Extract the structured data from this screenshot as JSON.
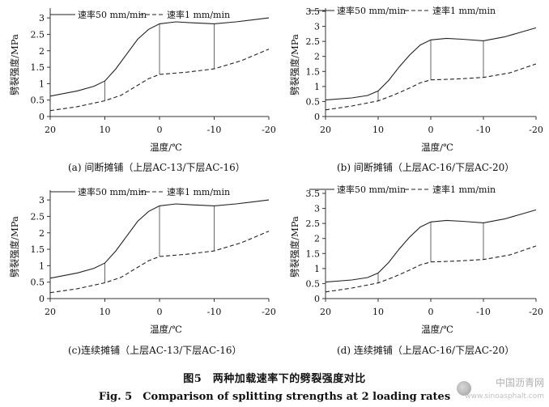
{
  "figure": {
    "caption_cn": "图5　两种加载速率下的劈裂强度对比",
    "caption_en": "Fig. 5　Comparison of splitting strengths at 2 loading rates"
  },
  "watermark": {
    "text": "中国沥青网",
    "url": "www.sinoasphalt.com"
  },
  "chart_data": [
    {
      "type": "line",
      "caption": "(a) 间断摊铺（上层AC-13/下层AC-16）",
      "xlabel": "温度/℃",
      "ylabel": "劈裂强度/MPa",
      "x_ticks": [
        20,
        10,
        0,
        -10,
        -20
      ],
      "y_ticks": [
        0,
        0.5,
        1,
        1.5,
        2,
        2.5,
        3
      ],
      "xlim": [
        20,
        -20
      ],
      "ylim": [
        0,
        3.2
      ],
      "legend_position": "top",
      "series": [
        {
          "name": "速率50 mm/min",
          "style": "solid",
          "x": [
            20,
            15,
            12,
            10,
            8,
            6,
            4,
            2,
            0,
            -3,
            -6,
            -10,
            -14,
            -17,
            -20
          ],
          "y": [
            0.62,
            0.78,
            0.92,
            1.08,
            1.45,
            1.9,
            2.35,
            2.65,
            2.82,
            2.88,
            2.85,
            2.82,
            2.88,
            2.94,
            3.0
          ]
        },
        {
          "name": "速率1 mm/min",
          "style": "dashed",
          "x": [
            20,
            15,
            10,
            7,
            4,
            2,
            0,
            -5,
            -10,
            -15,
            -20
          ],
          "y": [
            0.18,
            0.3,
            0.48,
            0.65,
            0.95,
            1.15,
            1.28,
            1.35,
            1.45,
            1.7,
            2.05
          ]
        }
      ],
      "verticals": [
        {
          "x": 10,
          "y_from": 0.48,
          "y_to": 1.08
        },
        {
          "x": 0,
          "y_from": 1.28,
          "y_to": 2.82
        },
        {
          "x": -10,
          "y_from": 1.45,
          "y_to": 2.82
        }
      ]
    },
    {
      "type": "line",
      "caption": "(b) 间断摊铺（上层AC-16/下层AC-20）",
      "xlabel": "温度/℃",
      "ylabel": "劈裂强度/MPa",
      "x_ticks": [
        20,
        10,
        0,
        -10,
        -20
      ],
      "y_ticks": [
        0,
        0.5,
        1,
        1.5,
        2,
        2.5,
        3,
        3.5
      ],
      "xlim": [
        20,
        -20
      ],
      "ylim": [
        0,
        3.5
      ],
      "legend_position": "top",
      "series": [
        {
          "name": "速率50 mm/min",
          "style": "solid",
          "x": [
            20,
            15,
            12,
            10,
            8,
            6,
            4,
            2,
            0,
            -3,
            -6,
            -10,
            -14,
            -17,
            -20
          ],
          "y": [
            0.55,
            0.62,
            0.7,
            0.85,
            1.2,
            1.65,
            2.05,
            2.38,
            2.55,
            2.6,
            2.57,
            2.52,
            2.65,
            2.8,
            2.95
          ]
        },
        {
          "name": "速率1 mm/min",
          "style": "dashed",
          "x": [
            20,
            15,
            10,
            7,
            4,
            2,
            0,
            -5,
            -10,
            -15,
            -20
          ],
          "y": [
            0.22,
            0.35,
            0.52,
            0.72,
            0.95,
            1.12,
            1.22,
            1.25,
            1.3,
            1.45,
            1.75
          ]
        }
      ],
      "verticals": [
        {
          "x": 10,
          "y_from": 0.52,
          "y_to": 0.85
        },
        {
          "x": 0,
          "y_from": 1.22,
          "y_to": 2.55
        },
        {
          "x": -10,
          "y_from": 1.3,
          "y_to": 2.52
        }
      ]
    },
    {
      "type": "line",
      "caption": "(c)连续摊铺（上层AC-13/下层AC-16）",
      "xlabel": "温度/℃",
      "ylabel": "劈裂强度/MPa",
      "x_ticks": [
        20,
        10,
        0,
        -10,
        -20
      ],
      "y_ticks": [
        0,
        0.5,
        1,
        1.5,
        2,
        2.5,
        3
      ],
      "xlim": [
        20,
        -20
      ],
      "ylim": [
        0,
        3.2
      ],
      "legend_position": "top",
      "series": [
        {
          "name": "速率50 mm/min",
          "style": "solid",
          "x": [
            20,
            15,
            12,
            10,
            8,
            6,
            4,
            2,
            0,
            -3,
            -6,
            -10,
            -14,
            -17,
            -20
          ],
          "y": [
            0.62,
            0.78,
            0.92,
            1.08,
            1.45,
            1.9,
            2.35,
            2.65,
            2.82,
            2.88,
            2.85,
            2.82,
            2.88,
            2.94,
            3.0
          ]
        },
        {
          "name": "速率1 mm/min",
          "style": "dashed",
          "x": [
            20,
            15,
            10,
            7,
            4,
            2,
            0,
            -5,
            -10,
            -15,
            -20
          ],
          "y": [
            0.18,
            0.3,
            0.48,
            0.65,
            0.95,
            1.15,
            1.28,
            1.35,
            1.45,
            1.7,
            2.05
          ]
        }
      ],
      "verticals": [
        {
          "x": 10,
          "y_from": 0.48,
          "y_to": 1.08
        },
        {
          "x": 0,
          "y_from": 1.28,
          "y_to": 2.82
        },
        {
          "x": -10,
          "y_from": 1.45,
          "y_to": 2.82
        }
      ]
    },
    {
      "type": "line",
      "caption": "(d) 连续摊铺（上层AC-16/下层AC-20）",
      "xlabel": "温度/℃",
      "ylabel": "劈裂强度/MPa",
      "x_ticks": [
        20,
        10,
        0,
        -10,
        -20
      ],
      "y_ticks": [
        0,
        0.5,
        1,
        1.5,
        2,
        2.5,
        3,
        3.5
      ],
      "xlim": [
        20,
        -20
      ],
      "ylim": [
        0,
        3.5
      ],
      "legend_position": "top",
      "series": [
        {
          "name": "速率50 mm/min",
          "style": "solid",
          "x": [
            20,
            15,
            12,
            10,
            8,
            6,
            4,
            2,
            0,
            -3,
            -6,
            -10,
            -14,
            -17,
            -20
          ],
          "y": [
            0.55,
            0.62,
            0.7,
            0.85,
            1.2,
            1.65,
            2.05,
            2.38,
            2.55,
            2.6,
            2.57,
            2.52,
            2.65,
            2.8,
            2.95
          ]
        },
        {
          "name": "速率1 mm/min",
          "style": "dashed",
          "x": [
            20,
            15,
            10,
            7,
            4,
            2,
            0,
            -5,
            -10,
            -15,
            -20
          ],
          "y": [
            0.22,
            0.35,
            0.52,
            0.72,
            0.95,
            1.12,
            1.22,
            1.25,
            1.3,
            1.45,
            1.75
          ]
        }
      ],
      "verticals": [
        {
          "x": 10,
          "y_from": 0.52,
          "y_to": 0.85
        },
        {
          "x": 0,
          "y_from": 1.22,
          "y_to": 2.55
        },
        {
          "x": -10,
          "y_from": 1.3,
          "y_to": 2.52
        }
      ]
    }
  ]
}
